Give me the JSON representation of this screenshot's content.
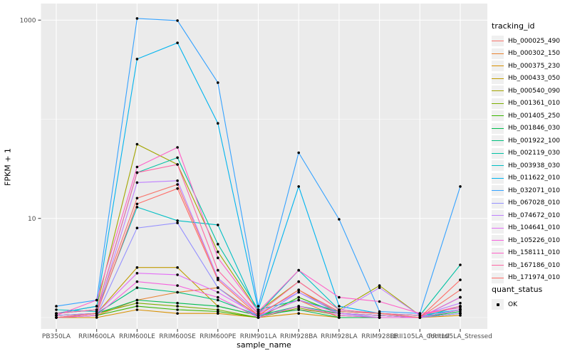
{
  "chart_data": {
    "type": "line",
    "title": "",
    "xlabel": "sample_name",
    "ylabel": "FPKM + 1",
    "y_scale": "log10",
    "y_ticks": [
      1000,
      10
    ],
    "y_minor_ticks": [
      100,
      1
    ],
    "ylim": [
      0.78,
      1450
    ],
    "grid": "on",
    "legend_position": "right",
    "colors": {
      "panel_bg": "#EBEBEB",
      "gridline": "#FFFFFF",
      "tick_text": "#4D4D4D",
      "tick_mark": "#333333",
      "point": "#000000",
      "legend_key_bg": "#F0F0F0"
    },
    "categories": [
      "PB350LA",
      "RRIM600LA",
      "RRIM600LE",
      "RRIM600SE",
      "RRIM600PE",
      "RRIM901LA",
      "RRIM928BA",
      "RRIM928LA",
      "RRIM928LE",
      "RRII105LA_Control",
      "RRII105LA_Stressed"
    ],
    "legend": {
      "title": "tracking_id"
    },
    "legend2": {
      "title": "quant_status",
      "items": [
        "OK"
      ]
    },
    "series": [
      {
        "name": "Hb_000025_490",
        "color": "#F8766D",
        "values": [
          1.1,
          1.2,
          16,
          22,
          2.5,
          1.1,
          1.2,
          1.1,
          1.05,
          1.0,
          1.9
        ]
      },
      {
        "name": "Hb_000302_150",
        "color": "#EA8331",
        "values": [
          1.0,
          1.05,
          1.5,
          1.8,
          2.0,
          1.05,
          1.5,
          1.0,
          1.0,
          1.0,
          1.1
        ]
      },
      {
        "name": "Hb_000375_230",
        "color": "#D89000",
        "values": [
          1.0,
          1.0,
          1.2,
          1.1,
          1.1,
          1.0,
          1.1,
          1.0,
          1.0,
          1.0,
          1.05
        ]
      },
      {
        "name": "Hb_000433_050",
        "color": "#C09B00",
        "values": [
          1.05,
          1.1,
          3.2,
          3.2,
          1.3,
          1.05,
          1.9,
          1.1,
          1.05,
          1.0,
          1.2
        ]
      },
      {
        "name": "Hb_000540_090",
        "color": "#A3A500",
        "values": [
          1.1,
          1.3,
          56,
          35,
          4.6,
          1.15,
          2.3,
          1.2,
          2.1,
          1.05,
          1.3
        ]
      },
      {
        "name": "Hb_001361_010",
        "color": "#7CAE00",
        "values": [
          1.0,
          1.1,
          1.4,
          1.3,
          1.2,
          1.0,
          1.25,
          1.05,
          1.0,
          1.0,
          1.1
        ]
      },
      {
        "name": "Hb_001405_250",
        "color": "#39B600",
        "values": [
          1.0,
          1.05,
          1.3,
          1.2,
          1.15,
          1.0,
          1.6,
          1.1,
          1.05,
          1.0,
          1.2
        ]
      },
      {
        "name": "Hb_001846_030",
        "color": "#00BB4E",
        "values": [
          1.05,
          1.1,
          1.5,
          1.4,
          1.3,
          1.05,
          1.2,
          1.0,
          1.0,
          1.0,
          1.15
        ]
      },
      {
        "name": "Hb_001922_100",
        "color": "#00BF7D",
        "values": [
          1.0,
          1.1,
          2.0,
          1.8,
          1.5,
          1.05,
          1.3,
          1.1,
          1.05,
          1.0,
          1.6
        ]
      },
      {
        "name": "Hb_002119_030",
        "color": "#00C1A3",
        "values": [
          1.1,
          1.2,
          29,
          41,
          5.5,
          1.2,
          1.5,
          1.15,
          1.1,
          1.05,
          3.4
        ]
      },
      {
        "name": "Hb_003938_030",
        "color": "#00BFC4",
        "values": [
          1.2,
          1.15,
          13,
          9.5,
          8.6,
          1.1,
          3.0,
          1.2,
          1.1,
          1.0,
          1.3
        ]
      },
      {
        "name": "Hb_011622_010",
        "color": "#00B4EF",
        "values": [
          1.1,
          1.3,
          405,
          590,
          91,
          1.2,
          21,
          1.3,
          1.1,
          1.05,
          1.2
        ]
      },
      {
        "name": "Hb_032071_010",
        "color": "#35A2FF",
        "values": [
          1.3,
          1.5,
          1040,
          990,
          234,
          1.3,
          46,
          9.8,
          1.15,
          1.1,
          21
        ]
      },
      {
        "name": "Hb_067028_010",
        "color": "#9590FF",
        "values": [
          1.0,
          1.05,
          8,
          9,
          2.0,
          1.0,
          1.8,
          1.1,
          1.0,
          1.0,
          1.1
        ]
      },
      {
        "name": "Hb_074672_010",
        "color": "#BF80FF",
        "values": [
          1.05,
          1.1,
          23,
          24,
          2.5,
          1.1,
          1.8,
          1.15,
          2.0,
          1.05,
          1.4
        ]
      },
      {
        "name": "Hb_104641_010",
        "color": "#E36EF6",
        "values": [
          1.0,
          1.1,
          2.8,
          2.7,
          1.8,
          1.05,
          1.5,
          1.1,
          1.05,
          1.0,
          1.2
        ]
      },
      {
        "name": "Hb_105226_010",
        "color": "#F562DD",
        "values": [
          1.0,
          1.05,
          2.3,
          2.1,
          1.6,
          1.0,
          1.3,
          1.05,
          1.0,
          1.0,
          1.6
        ]
      },
      {
        "name": "Hb_158111_010",
        "color": "#FF61C9",
        "values": [
          1.05,
          1.5,
          33,
          52,
          4.0,
          1.15,
          3.0,
          1.6,
          1.45,
          1.1,
          1.25
        ]
      },
      {
        "name": "Hb_167186_010",
        "color": "#FF67A4",
        "values": [
          1.1,
          1.2,
          29,
          35,
          3.0,
          1.1,
          2.3,
          1.2,
          1.1,
          1.05,
          1.3
        ]
      },
      {
        "name": "Hb_171974_010",
        "color": "#FF6C67",
        "values": [
          1.0,
          1.1,
          14,
          20,
          2.4,
          1.05,
          1.9,
          1.15,
          1.1,
          1.0,
          2.4
        ]
      }
    ]
  }
}
